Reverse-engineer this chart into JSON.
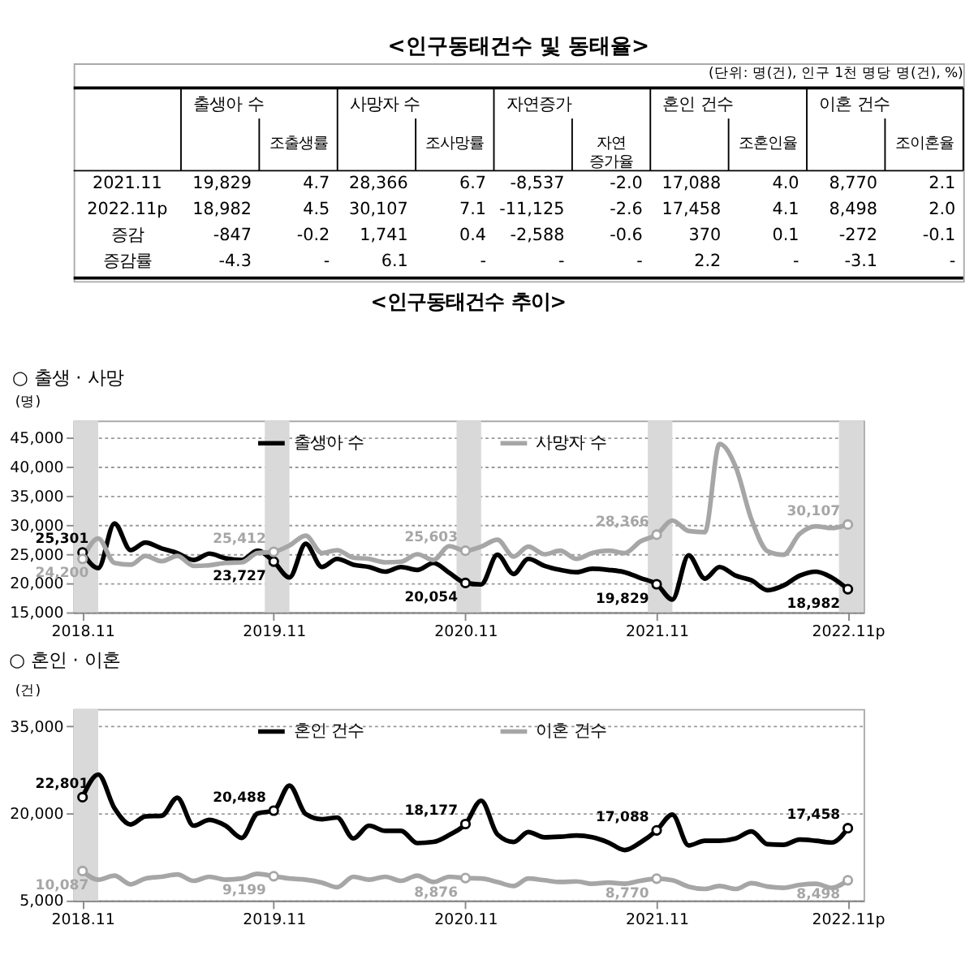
{
  "chart_data": [
    {
      "type": "other",
      "title": "<인구동태건수 및 동태율>",
      "subtitle": "(단위: 명(건), 인구 1천 명당 명(건), %)",
      "categories": [
        "출생아 수",
        "조출생률",
        "사망자 수",
        "조사망률",
        "자연증가",
        "자연 증가율",
        "혼인 건수",
        "조혼인율",
        "이혼 건수",
        "조이혼율"
      ],
      "y_categories": [
        "2021.11",
        "2022.11p",
        "증감",
        "증감률"
      ],
      "cell_labels": [
        [
          "19,829",
          "4.7",
          "28,366",
          "6.7",
          "-8,537",
          "-2.0",
          "17,088",
          "4.0",
          "8,770",
          "2.1"
        ],
        [
          "18,982",
          "4.5",
          "30,107",
          "7.1",
          "-11,125",
          "-2.6",
          "17,458",
          "4.1",
          "8,498",
          "2.0"
        ],
        [
          "-847",
          "-0.2",
          "1,741",
          "0.4",
          "-2,588",
          "-0.6",
          "370",
          "0.1",
          "-272",
          "-0.1"
        ],
        [
          "-4.3",
          "-",
          "6.1",
          "-",
          "-",
          "-",
          "2.2",
          "-",
          "-3.1",
          "-"
        ]
      ]
    },
    {
      "type": "line",
      "title": "<인구동태건수 추이>",
      "subtitle": "○ 출생 · 사망",
      "ylabel": "(명)",
      "x": [
        "2018-11",
        "2018-12",
        "2019-01",
        "2019-02",
        "2019-03",
        "2019-04",
        "2019-05",
        "2019-06",
        "2019-07",
        "2019-08",
        "2019-09",
        "2019-10",
        "2019-11",
        "2019-12",
        "2020-01",
        "2020-02",
        "2020-03",
        "2020-04",
        "2020-05",
        "2020-06",
        "2020-07",
        "2020-08",
        "2020-09",
        "2020-10",
        "2020-11",
        "2020-12",
        "2021-01",
        "2021-02",
        "2021-03",
        "2021-04",
        "2021-05",
        "2021-06",
        "2021-07",
        "2021-08",
        "2021-09",
        "2021-10",
        "2021-11",
        "2021-12",
        "2022-01",
        "2022-02",
        "2022-03",
        "2022-04",
        "2022-05",
        "2022-06",
        "2022-07",
        "2022-08",
        "2022-09",
        "2022-10",
        "2022-11"
      ],
      "series": [
        {
          "name": "출생아 수",
          "color": "#000000",
          "values": [
            25301,
            22600,
            30300,
            25700,
            27000,
            26000,
            25200,
            24000,
            25100,
            24300,
            24000,
            25600,
            23727,
            21000,
            26800,
            22800,
            24200,
            23200,
            22800,
            22000,
            22800,
            22300,
            23500,
            21800,
            20054,
            19800,
            24900,
            21600,
            24200,
            23000,
            22300,
            21900,
            22500,
            22300,
            21900,
            20900,
            19829,
            17200,
            24800,
            20800,
            22800,
            21300,
            20500,
            18800,
            19600,
            21300,
            22000,
            21000,
            18982
          ],
          "value_labels": [
            "25,301",
            null,
            null,
            null,
            null,
            null,
            null,
            null,
            null,
            null,
            null,
            null,
            "23,727",
            null,
            null,
            null,
            null,
            null,
            null,
            null,
            null,
            null,
            null,
            null,
            "20,054",
            null,
            null,
            null,
            null,
            null,
            null,
            null,
            null,
            null,
            null,
            null,
            "19,829",
            null,
            null,
            null,
            null,
            null,
            null,
            null,
            null,
            null,
            null,
            null,
            "18,982"
          ]
        },
        {
          "name": "사망자 수",
          "color": "#a6a6a6",
          "values": [
            24200,
            27700,
            23500,
            23200,
            24700,
            23800,
            24700,
            23000,
            23100,
            23500,
            23600,
            25200,
            25412,
            26500,
            28200,
            25200,
            25700,
            24400,
            24200,
            23600,
            23700,
            25000,
            24000,
            26400,
            25603,
            26300,
            27500,
            24600,
            26300,
            25000,
            25600,
            24200,
            25200,
            25600,
            25200,
            27200,
            28366,
            30800,
            29000,
            28800,
            44000,
            40000,
            31000,
            25500,
            24900,
            28500,
            29800,
            29500,
            30107
          ],
          "value_labels": [
            "24,200",
            null,
            null,
            null,
            null,
            null,
            null,
            null,
            null,
            null,
            null,
            null,
            "25,412",
            null,
            null,
            null,
            null,
            null,
            null,
            null,
            null,
            null,
            null,
            null,
            "25,603",
            null,
            null,
            null,
            null,
            null,
            null,
            null,
            null,
            null,
            null,
            null,
            "28,366",
            null,
            null,
            null,
            null,
            null,
            null,
            null,
            null,
            null,
            null,
            null,
            "30,107"
          ]
        }
      ],
      "xlim": [
        "2018-10-15",
        "2022-12-01"
      ],
      "xticks": [
        {
          "value": "2018-11",
          "label": "2018.11"
        },
        {
          "value": "2019-11",
          "label": "2019.11"
        },
        {
          "value": "2020-11",
          "label": "2020.11"
        },
        {
          "value": "2021-11",
          "label": "2021.11"
        },
        {
          "value": "2022-11",
          "label": "2022.11p"
        }
      ],
      "ylim": [
        15000,
        48000
      ],
      "yticks": [
        {
          "value": 15000,
          "label": "15,000"
        },
        {
          "value": 20000,
          "label": "20,000"
        },
        {
          "value": 25000,
          "label": "25,000"
        },
        {
          "value": 30000,
          "label": "30,000"
        },
        {
          "value": 35000,
          "label": "35,000"
        },
        {
          "value": 40000,
          "label": "40,000"
        },
        {
          "value": 45000,
          "label": "45,000"
        }
      ],
      "bands": [
        {
          "axis": "x",
          "from": "2018-10-15",
          "to": "2018-12-01",
          "color": "#d9d9d9"
        },
        {
          "axis": "x",
          "from": "2019-10-15",
          "to": "2019-12-01",
          "color": "#d9d9d9"
        },
        {
          "axis": "x",
          "from": "2020-10-15",
          "to": "2020-12-01",
          "color": "#d9d9d9"
        },
        {
          "axis": "x",
          "from": "2021-10-15",
          "to": "2021-12-01",
          "color": "#d9d9d9"
        },
        {
          "axis": "x",
          "from": "2022-10-15",
          "to": "2022-12-01",
          "color": "#d9d9d9"
        }
      ],
      "grid": "y",
      "legend": "top"
    },
    {
      "type": "line",
      "title": "○ 혼인 · 이혼",
      "ylabel": "(건)",
      "x": [
        "2018-11",
        "2018-12",
        "2019-01",
        "2019-02",
        "2019-03",
        "2019-04",
        "2019-05",
        "2019-06",
        "2019-07",
        "2019-08",
        "2019-09",
        "2019-10",
        "2019-11",
        "2019-12",
        "2020-01",
        "2020-02",
        "2020-03",
        "2020-04",
        "2020-05",
        "2020-06",
        "2020-07",
        "2020-08",
        "2020-09",
        "2020-10",
        "2020-11",
        "2020-12",
        "2021-01",
        "2021-02",
        "2021-03",
        "2021-04",
        "2021-05",
        "2021-06",
        "2021-07",
        "2021-08",
        "2021-09",
        "2021-10",
        "2021-11",
        "2021-12",
        "2022-01",
        "2022-02",
        "2022-03",
        "2022-04",
        "2022-05",
        "2022-06",
        "2022-07",
        "2022-08",
        "2022-09",
        "2022-10",
        "2022-11"
      ],
      "series": [
        {
          "name": "혼인 건수",
          "color": "#000000",
          "values": [
            22801,
            26700,
            20900,
            18100,
            19500,
            19600,
            22700,
            17900,
            18900,
            17900,
            15800,
            20000,
            20488,
            24800,
            19900,
            19000,
            19300,
            15700,
            17900,
            17000,
            17000,
            14900,
            15100,
            16300,
            18177,
            22200,
            16400,
            15100,
            16800,
            15900,
            16000,
            16200,
            15900,
            15000,
            13700,
            15000,
            17088,
            19800,
            14500,
            15300,
            15300,
            15700,
            16900,
            14700,
            14600,
            15500,
            15300,
            15000,
            17458
          ],
          "value_labels": [
            "22,801",
            null,
            null,
            null,
            null,
            null,
            null,
            null,
            null,
            null,
            null,
            null,
            "20,488",
            null,
            null,
            null,
            null,
            null,
            null,
            null,
            null,
            null,
            null,
            null,
            "18,177",
            null,
            null,
            null,
            null,
            null,
            null,
            null,
            null,
            null,
            null,
            null,
            "17,088",
            null,
            null,
            null,
            null,
            null,
            null,
            null,
            null,
            null,
            null,
            null,
            "17,458"
          ]
        },
        {
          "name": "이혼 건수",
          "color": "#a6a6a6",
          "values": [
            10087,
            8600,
            9300,
            7800,
            8800,
            9100,
            9500,
            8400,
            9100,
            8600,
            8800,
            9600,
            9199,
            8800,
            8600,
            8100,
            7300,
            9100,
            8600,
            9100,
            8400,
            9300,
            8200,
            9100,
            8876,
            8800,
            8200,
            7500,
            8800,
            8500,
            8200,
            8300,
            7900,
            8100,
            7900,
            8400,
            8770,
            8500,
            7400,
            7000,
            7500,
            7000,
            8000,
            7400,
            7200,
            7700,
            7900,
            7200,
            8498
          ],
          "value_labels": [
            "10,087",
            null,
            null,
            null,
            null,
            null,
            null,
            null,
            null,
            null,
            null,
            null,
            "9,199",
            null,
            null,
            null,
            null,
            null,
            null,
            null,
            null,
            null,
            null,
            null,
            "8,876",
            null,
            null,
            null,
            null,
            null,
            null,
            null,
            null,
            null,
            null,
            null,
            "8,770",
            null,
            null,
            null,
            null,
            null,
            null,
            null,
            null,
            null,
            null,
            null,
            "8,498"
          ]
        }
      ],
      "xlim": [
        "2018-10-15",
        "2022-12-01"
      ],
      "xticks": [
        {
          "value": "2018-11",
          "label": "2018.11"
        },
        {
          "value": "2019-11",
          "label": "2019.11"
        },
        {
          "value": "2020-11",
          "label": "2020.11"
        },
        {
          "value": "2021-11",
          "label": "2021.11"
        },
        {
          "value": "2022-11",
          "label": "2022.11p"
        }
      ],
      "ylim": [
        5000,
        38000
      ],
      "yticks": [
        {
          "value": 5000,
          "label": "5,000"
        },
        {
          "value": 20000,
          "label": "20,000"
        },
        {
          "value": 35000,
          "label": "35,000"
        }
      ],
      "bands": [
        {
          "axis": "x",
          "from": "2018-10-15",
          "to": "2018-12-01",
          "color": "#d9d9d9"
        }
      ],
      "grid": "y",
      "legend": "top"
    }
  ]
}
